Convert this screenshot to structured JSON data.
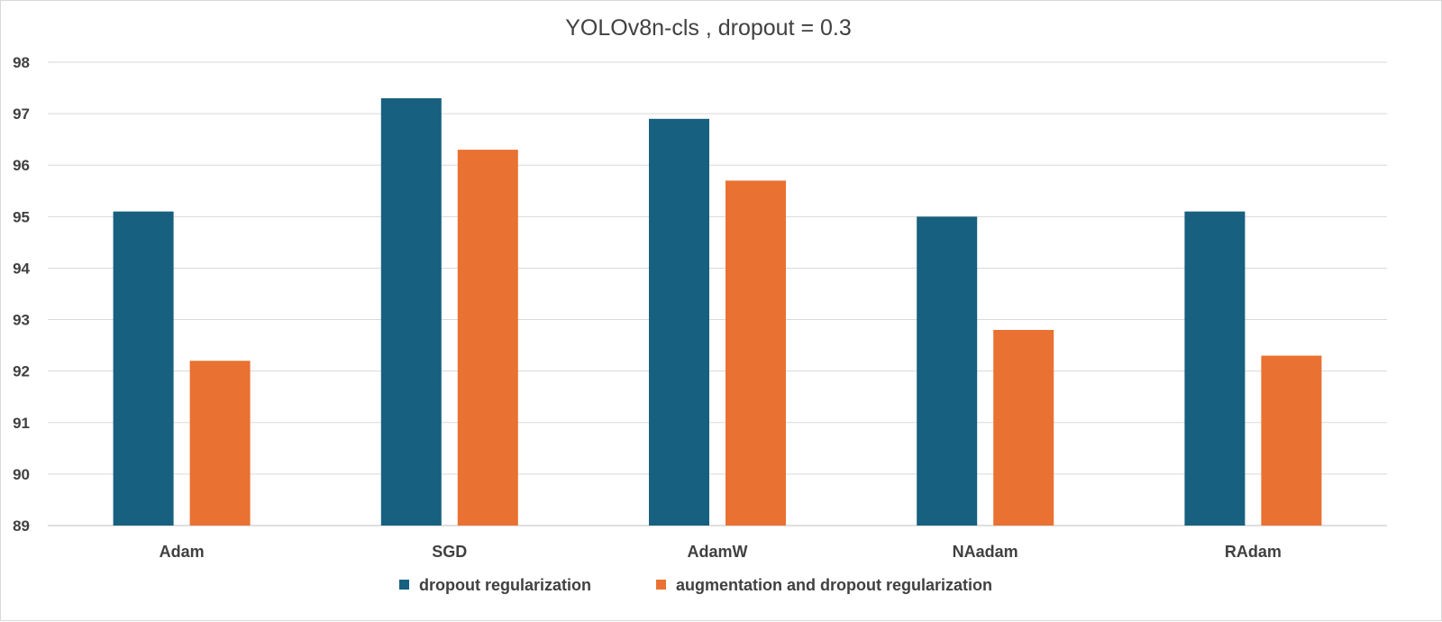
{
  "chart_data": {
    "type": "bar",
    "title": "YOLOv8n-cls , dropout = 0.3",
    "xlabel": "",
    "ylabel": "",
    "categories": [
      "Adam",
      "SGD",
      "AdamW",
      "NAadam",
      "RAdam"
    ],
    "series": [
      {
        "name": "dropout regularization",
        "color": "#17607F",
        "values": [
          95.1,
          97.3,
          96.9,
          95.0,
          95.1
        ]
      },
      {
        "name": "augmentation and dropout regularization",
        "color": "#E97132",
        "values": [
          92.2,
          96.3,
          95.7,
          92.8,
          92.3
        ]
      }
    ],
    "ylim": [
      89,
      98
    ],
    "yticks": [
      89,
      90,
      91,
      92,
      93,
      94,
      95,
      96,
      97,
      98
    ],
    "grid": true,
    "legend_position": "bottom"
  }
}
